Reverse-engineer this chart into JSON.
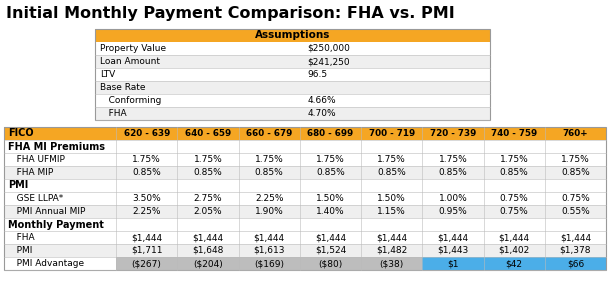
{
  "title": "Initial Monthly Payment Comparison: FHA vs. PMI",
  "assumptions_header": "Assumptions",
  "assumptions": [
    [
      "Property Value",
      "$250,000"
    ],
    [
      "Loan Amount",
      "$241,250"
    ],
    [
      "LTV",
      "96.5"
    ],
    [
      "Base Rate",
      ""
    ],
    [
      "   Conforming",
      "4.66%"
    ],
    [
      "   FHA",
      "4.70%"
    ]
  ],
  "fico_header": "FICO",
  "fico_cols": [
    "620 - 639",
    "640 - 659",
    "660 - 679",
    "680 - 699",
    "700 - 719",
    "720 - 739",
    "740 - 759",
    "760+"
  ],
  "sections": [
    {
      "section_label": "FHA MI Premiums",
      "rows": [
        {
          "label": "   FHA UFMIP",
          "values": [
            "1.75%",
            "1.75%",
            "1.75%",
            "1.75%",
            "1.75%",
            "1.75%",
            "1.75%",
            "1.75%"
          ],
          "highlight_cols": [],
          "negative_highlight": false
        },
        {
          "label": "   FHA MIP",
          "values": [
            "0.85%",
            "0.85%",
            "0.85%",
            "0.85%",
            "0.85%",
            "0.85%",
            "0.85%",
            "0.85%"
          ],
          "highlight_cols": [],
          "negative_highlight": false
        }
      ]
    },
    {
      "section_label": "PMI",
      "rows": [
        {
          "label": "   GSE LLPA*",
          "values": [
            "3.50%",
            "2.75%",
            "2.25%",
            "1.50%",
            "1.50%",
            "1.00%",
            "0.75%",
            "0.75%"
          ],
          "highlight_cols": [],
          "negative_highlight": false
        },
        {
          "label": "   PMI Annual MIP",
          "values": [
            "2.25%",
            "2.05%",
            "1.90%",
            "1.40%",
            "1.15%",
            "0.95%",
            "0.75%",
            "0.55%"
          ],
          "highlight_cols": [],
          "negative_highlight": false
        }
      ]
    },
    {
      "section_label": "Monthly Payment",
      "rows": [
        {
          "label": "   FHA",
          "values": [
            "$1,444",
            "$1,444",
            "$1,444",
            "$1,444",
            "$1,444",
            "$1,444",
            "$1,444",
            "$1,444"
          ],
          "highlight_cols": [],
          "negative_highlight": false
        },
        {
          "label": "   PMI",
          "values": [
            "$1,711",
            "$1,648",
            "$1,613",
            "$1,524",
            "$1,482",
            "$1,443",
            "$1,402",
            "$1,378"
          ],
          "highlight_cols": [],
          "negative_highlight": false
        },
        {
          "label": "   PMI Advantage",
          "values": [
            "($267)",
            "($204)",
            "($169)",
            "($80)",
            "($38)",
            "$1",
            "$42",
            "$66"
          ],
          "highlight_cols": [
            5,
            6,
            7
          ],
          "negative_highlight": true
        }
      ]
    }
  ],
  "colors": {
    "title_text": "#000000",
    "assumptions_header_bg": "#F5A623",
    "assumptions_header_text": "#000000",
    "fico_row_bg": "#F5A623",
    "fico_row_text": "#000000",
    "section_label_text": "#000000",
    "row_text": "#000000",
    "odd_row_bg": "#EFEFEF",
    "even_row_bg": "#FFFFFF",
    "highlight_bg": "#4BAEE8",
    "negative_bg": "#BDBDBD",
    "table_border": "#999999",
    "assumptions_border": "#BBBBBB"
  }
}
